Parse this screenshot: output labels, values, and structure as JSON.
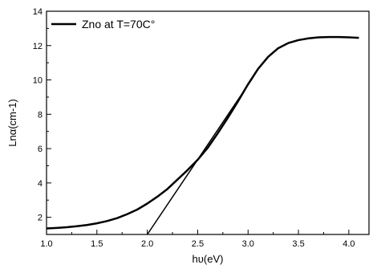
{
  "chart_data": {
    "type": "line",
    "xlabel": "hυ(eV)",
    "ylabel": "Lnα(cm-1)",
    "xlim": [
      1.0,
      4.2
    ],
    "ylim": [
      1.0,
      14.0
    ],
    "x_ticks": [
      "1.0",
      "1.5",
      "2.0",
      "2.5",
      "3.0",
      "3.5",
      "4.0"
    ],
    "y_ticks": [
      "2",
      "4",
      "6",
      "8",
      "10",
      "12",
      "14"
    ],
    "grid": false,
    "legend_position": "top-left",
    "series": [
      {
        "name": "Zno at T=70C°",
        "color": "#000000",
        "x": [
          1.0,
          1.1,
          1.2,
          1.3,
          1.4,
          1.5,
          1.6,
          1.7,
          1.8,
          1.9,
          2.0,
          2.1,
          2.2,
          2.3,
          2.4,
          2.5,
          2.6,
          2.7,
          2.8,
          2.9,
          3.0,
          3.1,
          3.2,
          3.3,
          3.4,
          3.5,
          3.6,
          3.7,
          3.8,
          3.9,
          4.0,
          4.1
        ],
        "y": [
          1.35,
          1.38,
          1.42,
          1.48,
          1.55,
          1.65,
          1.78,
          1.95,
          2.18,
          2.45,
          2.8,
          3.2,
          3.65,
          4.2,
          4.75,
          5.35,
          6.05,
          6.9,
          7.8,
          8.75,
          9.75,
          10.65,
          11.35,
          11.85,
          12.15,
          12.32,
          12.42,
          12.48,
          12.5,
          12.5,
          12.48,
          12.45
        ]
      }
    ],
    "fit_line": {
      "x": [
        2.0,
        3.05
      ],
      "y": [
        1.0,
        10.15
      ],
      "color": "#000000"
    }
  }
}
